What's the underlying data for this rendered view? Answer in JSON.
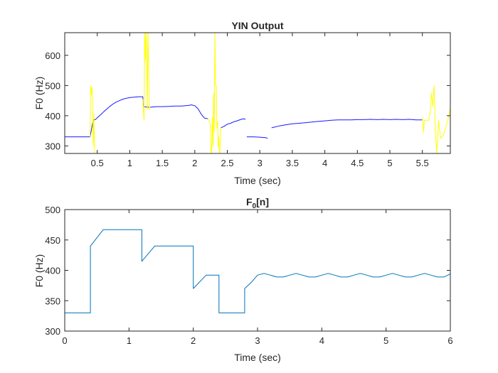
{
  "chart_data": [
    {
      "type": "line",
      "title": "YIN Output",
      "xlabel": "Time (sec)",
      "ylabel": "F0 (Hz)",
      "xlim": [
        0,
        5.93
      ],
      "ylim": [
        275,
        675
      ],
      "xticks": [
        0.5,
        1,
        1.5,
        2,
        2.5,
        3,
        3.5,
        4,
        4.5,
        5,
        5.5
      ],
      "xtick_labels": [
        "0.5",
        "1",
        "1.5",
        "2",
        "2.5",
        "3",
        "3.5",
        "4",
        "4.5",
        "5",
        "5.5"
      ],
      "yticks": [
        300,
        400,
        500,
        600
      ],
      "ytick_labels": [
        "300",
        "400",
        "500",
        "600"
      ],
      "grid": false,
      "series_colors": {
        "blue": "#1a1aff",
        "yellow": "#ffff00",
        "green": "#22dd22"
      },
      "series": [
        {
          "color_key": "blue",
          "x": [
            0.0,
            0.1,
            0.2,
            0.3,
            0.39,
            0.44,
            0.47,
            0.5,
            0.55,
            0.6,
            0.65,
            0.7,
            0.75,
            0.8,
            0.85,
            0.9,
            0.95,
            1.0,
            1.05,
            1.1,
            1.15,
            1.2,
            1.21,
            1.3,
            1.4,
            1.5,
            1.6,
            1.7,
            1.8,
            1.9,
            1.95,
            2.0,
            2.05,
            2.1,
            2.15,
            2.2
          ],
          "y": [
            330,
            330,
            330,
            330,
            330,
            387,
            387,
            393,
            403,
            413,
            423,
            432,
            440,
            446,
            451,
            455,
            458,
            460,
            461,
            462,
            463,
            463,
            430,
            428,
            430,
            430,
            431,
            432,
            432,
            434,
            436,
            433,
            423,
            405,
            392,
            390
          ]
        },
        {
          "color_key": "blue",
          "x": [
            2.4,
            2.45,
            2.5,
            2.55,
            2.6,
            2.65,
            2.7,
            2.75,
            2.78
          ],
          "y": [
            360,
            365,
            372,
            375,
            380,
            383,
            387,
            390,
            388
          ]
        },
        {
          "color_key": "blue",
          "x": [
            2.8,
            2.9,
            3.0,
            3.1,
            3.12
          ],
          "y": [
            330,
            330,
            329,
            327,
            325
          ]
        },
        {
          "color_key": "blue",
          "x": [
            3.18,
            3.3,
            3.4,
            3.5,
            3.6,
            3.7,
            3.8,
            3.9,
            4.0,
            4.1,
            4.2,
            4.3,
            4.4,
            4.5,
            4.6,
            4.7,
            4.8,
            4.9,
            5.0,
            5.1,
            5.2,
            5.3,
            5.4,
            5.5
          ],
          "y": [
            360,
            366,
            370,
            373,
            375,
            377,
            379,
            381,
            383,
            385,
            386,
            386,
            386,
            387,
            387,
            388,
            387,
            388,
            387,
            388,
            387,
            388,
            386,
            386
          ]
        },
        {
          "color_key": "yellow",
          "x": [
            0.39,
            0.4,
            0.41,
            0.42,
            0.43,
            0.44,
            0.45,
            0.46,
            0.47
          ],
          "y": [
            330,
            500,
            470,
            495,
            440,
            300,
            405,
            272,
            275
          ]
        },
        {
          "color_key": "yellow",
          "x": [
            1.2,
            1.22,
            1.23,
            1.24,
            1.25,
            1.26,
            1.27,
            1.28,
            1.29,
            1.3,
            1.31
          ],
          "y": [
            455,
            385,
            675,
            580,
            680,
            620,
            420,
            680,
            580,
            420,
            430
          ]
        },
        {
          "color_key": "yellow",
          "x": [
            2.2,
            2.23,
            2.24,
            2.25,
            2.26,
            2.27,
            2.28,
            2.29,
            2.3,
            2.31,
            2.32,
            2.33,
            2.34,
            2.35,
            2.36,
            2.37,
            2.38,
            2.39,
            2.4
          ],
          "y": [
            390,
            380,
            365,
            280,
            275,
            395,
            300,
            475,
            345,
            680,
            500,
            500,
            360,
            380,
            295,
            330,
            270,
            290,
            360
          ]
        },
        {
          "color_key": "yellow",
          "x": [
            5.5,
            5.52,
            5.53,
            5.55,
            5.6,
            5.62,
            5.64,
            5.66,
            5.68,
            5.7,
            5.72,
            5.74,
            5.75,
            5.78,
            5.82,
            5.86,
            5.9,
            5.93
          ],
          "y": [
            395,
            345,
            385,
            385,
            385,
            410,
            475,
            430,
            500,
            350,
            275,
            345,
            385,
            325,
            335,
            360,
            395,
            425
          ]
        }
      ]
    },
    {
      "type": "line",
      "title_base": "F",
      "title_sub": "0",
      "title_rest": "[n]",
      "xlabel": "Time (sec)",
      "ylabel": "F0 (Hz)",
      "xlim": [
        0,
        6
      ],
      "ylim": [
        300,
        500
      ],
      "xticks": [
        0,
        1,
        2,
        3,
        4,
        5,
        6
      ],
      "xtick_labels": [
        "0",
        "1",
        "2",
        "3",
        "4",
        "5",
        "6"
      ],
      "yticks": [
        300,
        350,
        400,
        450,
        500
      ],
      "ytick_labels": [
        "300",
        "350",
        "400",
        "450",
        "500"
      ],
      "grid": false,
      "series_color": "#0072bd",
      "series": [
        {
          "x": [
            0,
            0.4,
            0.4,
            0.6,
            1.2,
            1.2,
            1.4,
            2.0,
            2.0,
            2.2,
            2.4,
            2.4,
            2.8,
            2.8,
            2.9,
            3.0,
            3.1,
            3.2,
            3.3,
            3.4,
            3.5,
            3.6,
            3.7,
            3.8,
            3.9,
            4.0,
            4.1,
            4.2,
            4.3,
            4.4,
            4.5,
            4.6,
            4.7,
            4.8,
            4.9,
            5.0,
            5.1,
            5.2,
            5.3,
            5.4,
            5.5,
            5.6,
            5.7,
            5.8,
            5.9,
            6.0
          ],
          "y": [
            330,
            330,
            440,
            467,
            467,
            415,
            440,
            440,
            370,
            392,
            392,
            330,
            330,
            370,
            380,
            392,
            395,
            392,
            389,
            389,
            392,
            395,
            392,
            389,
            389,
            392,
            395,
            392,
            389,
            389,
            392,
            395,
            392,
            389,
            389,
            392,
            395,
            392,
            389,
            389,
            392,
            395,
            392,
            389,
            389,
            394
          ]
        }
      ]
    }
  ]
}
